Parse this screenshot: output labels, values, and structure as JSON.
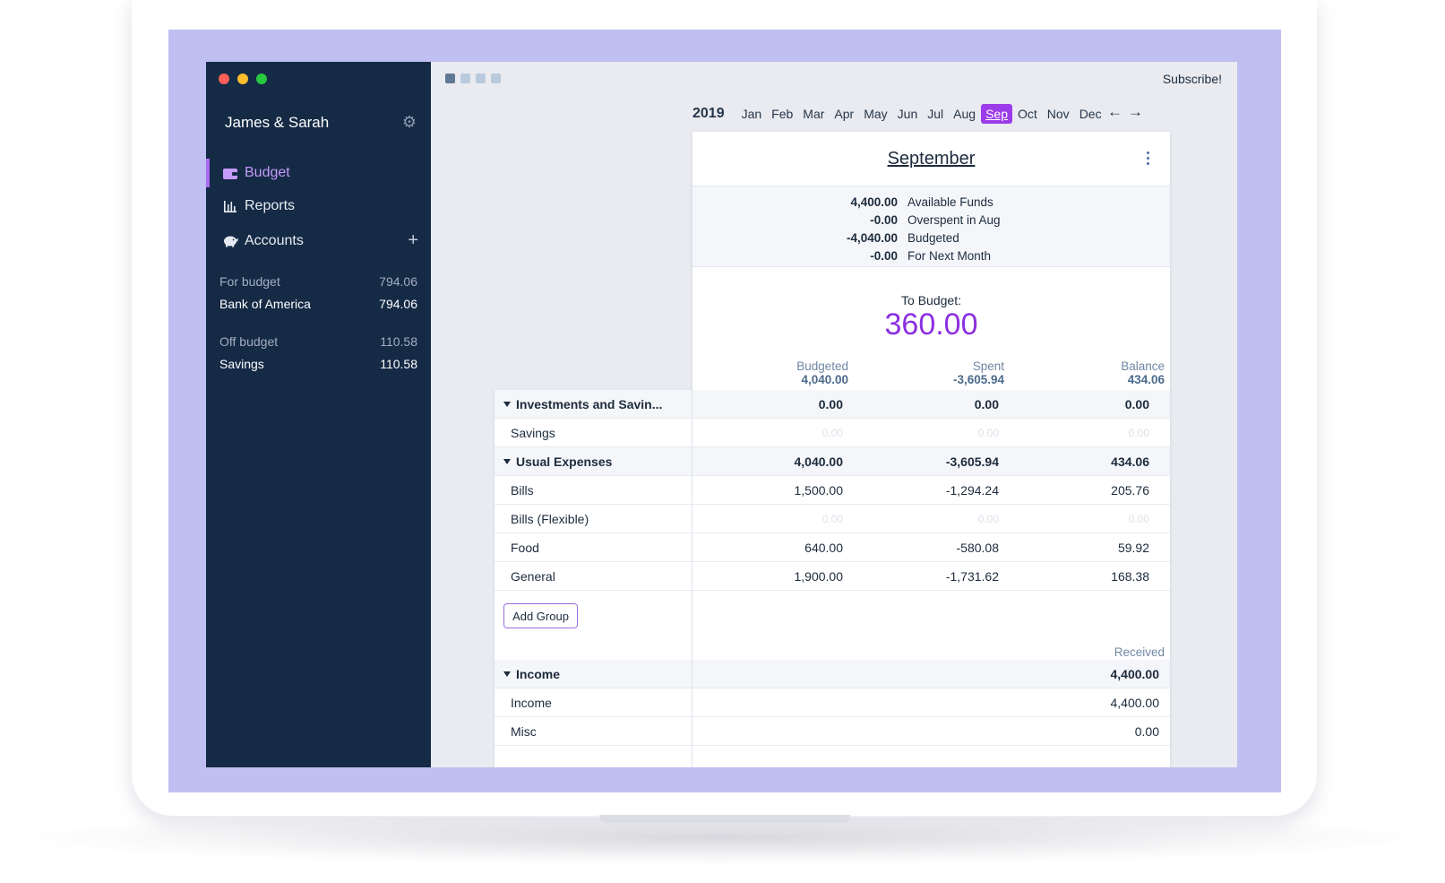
{
  "sidebar": {
    "budget_name": "James & Sarah",
    "nav": [
      {
        "label": "Budget",
        "icon": "wallet-icon"
      },
      {
        "label": "Reports",
        "icon": "bar-chart-icon"
      },
      {
        "label": "Accounts",
        "icon": "piggy-bank-icon"
      }
    ],
    "accounts": {
      "for_budget": {
        "label": "For budget",
        "total": "794.06",
        "items": [
          {
            "name": "Bank of America",
            "balance": "794.06"
          }
        ]
      },
      "off_budget": {
        "label": "Off budget",
        "total": "110.58",
        "items": [
          {
            "name": "Savings",
            "balance": "110.58"
          }
        ]
      }
    }
  },
  "topbar": {
    "subscribe": "Subscribe!"
  },
  "months": {
    "year": "2019",
    "list": [
      "Jan",
      "Feb",
      "Mar",
      "Apr",
      "May",
      "Jun",
      "Jul",
      "Aug",
      "Sep",
      "Oct",
      "Nov",
      "Dec"
    ],
    "selected": "Sep"
  },
  "card": {
    "title": "September",
    "summary": [
      {
        "value": "4,400.00",
        "label": "Available Funds"
      },
      {
        "value": "-0.00",
        "label": "Overspent in Aug"
      },
      {
        "value": "-4,040.00",
        "label": "Budgeted"
      },
      {
        "value": "-0.00",
        "label": "For Next Month"
      }
    ],
    "to_budget_label": "To Budget:",
    "to_budget_value": "360.00",
    "columns": {
      "budgeted": {
        "label": "Budgeted",
        "value": "4,040.00"
      },
      "spent": {
        "label": "Spent",
        "value": "-3,605.94"
      },
      "balance": {
        "label": "Balance",
        "value": "434.06"
      }
    }
  },
  "groups": [
    {
      "name": "Investments and Savin...",
      "budgeted": "0.00",
      "spent": "0.00",
      "balance": "0.00",
      "categories": [
        {
          "name": "Savings",
          "budgeted": "0.00",
          "spent": "0.00",
          "balance": "0.00"
        }
      ]
    },
    {
      "name": "Usual Expenses",
      "budgeted": "4,040.00",
      "spent": "-3,605.94",
      "balance": "434.06",
      "categories": [
        {
          "name": "Bills",
          "budgeted": "1,500.00",
          "spent": "-1,294.24",
          "balance": "205.76"
        },
        {
          "name": "Bills (Flexible)",
          "budgeted": "0.00",
          "spent": "0.00",
          "balance": "0.00"
        },
        {
          "name": "Food",
          "budgeted": "640.00",
          "spent": "-580.08",
          "balance": "59.92"
        },
        {
          "name": "General",
          "budgeted": "1,900.00",
          "spent": "-1,731.62",
          "balance": "168.38"
        }
      ]
    }
  ],
  "add_group_label": "Add Group",
  "income": {
    "received_label": "Received",
    "group": {
      "name": "Income",
      "received": "4,400.00"
    },
    "categories": [
      {
        "name": "Income",
        "received": "4,400.00"
      },
      {
        "name": "Misc",
        "received": "0.00"
      }
    ]
  },
  "colors": {
    "sidebar_bg": "#152a45",
    "accent": "#9b3be9",
    "to_budget": "#8b2fe0"
  }
}
